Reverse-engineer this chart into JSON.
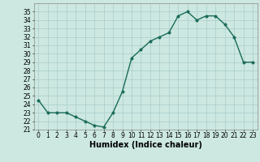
{
  "x": [
    0,
    1,
    2,
    3,
    4,
    5,
    6,
    7,
    8,
    9,
    10,
    11,
    12,
    13,
    14,
    15,
    16,
    17,
    18,
    19,
    20,
    21,
    22,
    23
  ],
  "y": [
    24.5,
    23.0,
    23.0,
    23.0,
    22.5,
    22.0,
    21.5,
    21.3,
    23.0,
    25.5,
    29.5,
    30.5,
    31.5,
    32.0,
    32.5,
    34.5,
    35.0,
    34.0,
    34.5,
    34.5,
    33.5,
    32.0,
    29.0,
    29.0
  ],
  "line_color": "#1a6b5a",
  "marker_color": "#1a6b5a",
  "bg_color": "#cce8e0",
  "grid_color": "#aacccc",
  "xlabel": "Humidex (Indice chaleur)",
  "ylim": [
    21,
    36
  ],
  "xlim": [
    -0.5,
    23.5
  ],
  "yticks": [
    21,
    22,
    23,
    24,
    25,
    26,
    27,
    28,
    29,
    30,
    31,
    32,
    33,
    34,
    35
  ],
  "xticks": [
    0,
    1,
    2,
    3,
    4,
    5,
    6,
    7,
    8,
    9,
    10,
    11,
    12,
    13,
    14,
    15,
    16,
    17,
    18,
    19,
    20,
    21,
    22,
    23
  ],
  "xlabel_fontsize": 7,
  "tick_fontsize": 5.5,
  "marker_size": 2.5,
  "line_width": 1.0
}
